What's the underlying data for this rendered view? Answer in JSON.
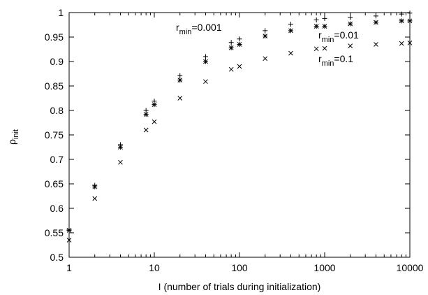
{
  "chart_data": {
    "type": "scatter",
    "xscale": "log",
    "xlim": [
      1,
      10000
    ],
    "ylim": [
      0.5,
      1
    ],
    "x_ticks": [
      "1",
      "10",
      "100",
      "1000",
      "10000"
    ],
    "y_ticks": [
      "0.5",
      "0.55",
      "0.6",
      "0.65",
      "0.7",
      "0.75",
      "0.8",
      "0.85",
      "0.9",
      "0.95",
      "1"
    ],
    "xlabel": "I (number of trials during initialization)",
    "ylabel": {
      "base": "ρ",
      "sub": "init"
    },
    "annotations": [
      {
        "base": "r",
        "sub": "min",
        "value": "=0.001"
      },
      {
        "base": "r",
        "sub": "min",
        "value": "=0.01"
      },
      {
        "base": "r",
        "sub": "min",
        "value": "=0.1"
      }
    ],
    "series": [
      {
        "marker": "plus",
        "points": [
          [
            1,
            0.557
          ],
          [
            2,
            0.647
          ],
          [
            4,
            0.73
          ],
          [
            8,
            0.8
          ],
          [
            10,
            0.819
          ],
          [
            20,
            0.871
          ],
          [
            40,
            0.91
          ],
          [
            80,
            0.939
          ],
          [
            100,
            0.946
          ],
          [
            200,
            0.963
          ],
          [
            400,
            0.976
          ],
          [
            800,
            0.985
          ],
          [
            1000,
            0.988
          ],
          [
            2000,
            0.99
          ],
          [
            4000,
            0.993
          ],
          [
            8000,
            0.997
          ],
          [
            10000,
            0.999
          ]
        ]
      },
      {
        "marker": "star",
        "points": [
          [
            1,
            0.555
          ],
          [
            2,
            0.644
          ],
          [
            4,
            0.725
          ],
          [
            8,
            0.792
          ],
          [
            10,
            0.812
          ],
          [
            20,
            0.862
          ],
          [
            40,
            0.9
          ],
          [
            80,
            0.928
          ],
          [
            100,
            0.935
          ],
          [
            200,
            0.952
          ],
          [
            400,
            0.963
          ],
          [
            800,
            0.972
          ],
          [
            1000,
            0.972
          ],
          [
            2000,
            0.977
          ],
          [
            4000,
            0.98
          ],
          [
            8000,
            0.983
          ],
          [
            10000,
            0.983
          ]
        ]
      },
      {
        "marker": "cross",
        "points": [
          [
            1,
            0.535
          ],
          [
            2,
            0.62
          ],
          [
            4,
            0.694
          ],
          [
            8,
            0.76
          ],
          [
            10,
            0.777
          ],
          [
            20,
            0.825
          ],
          [
            40,
            0.859
          ],
          [
            80,
            0.884
          ],
          [
            100,
            0.89
          ],
          [
            200,
            0.906
          ],
          [
            400,
            0.917
          ],
          [
            800,
            0.926
          ],
          [
            1000,
            0.927
          ],
          [
            2000,
            0.932
          ],
          [
            4000,
            0.935
          ],
          [
            8000,
            0.937
          ],
          [
            10000,
            0.938
          ]
        ]
      }
    ]
  }
}
